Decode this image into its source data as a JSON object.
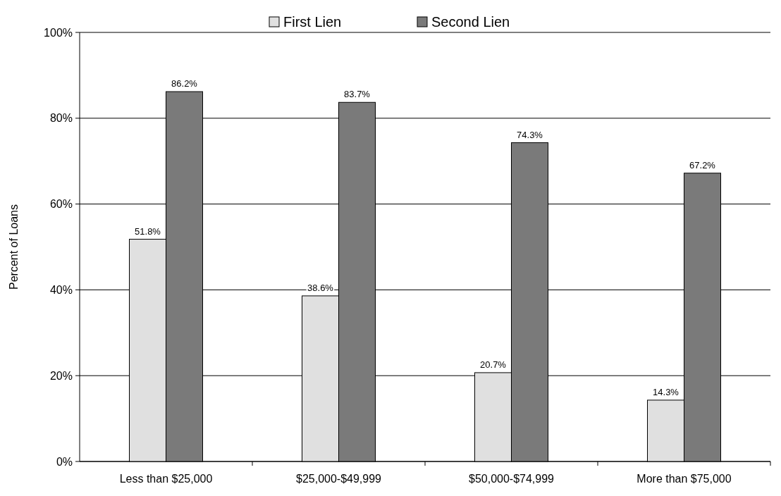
{
  "chart_data": {
    "type": "bar",
    "ylabel": "Percent of Loans",
    "categories": [
      "Less than $25,000",
      "$25,000-$49,999",
      "$50,000-$74,999",
      "More than $75,000"
    ],
    "series": [
      {
        "name": "First Lien",
        "color": "#e0e0e0",
        "values": [
          51.8,
          38.6,
          20.7,
          14.3
        ],
        "value_labels": [
          "51.8%",
          "38.6%",
          "20.7%",
          "14.3%"
        ]
      },
      {
        "name": "Second Lien",
        "color": "#7a7a7a",
        "values": [
          86.2,
          83.7,
          74.3,
          67.2
        ],
        "value_labels": [
          "86.2%",
          "83.7%",
          "74.3%",
          "67.2%"
        ]
      }
    ],
    "ylim": [
      0,
      100
    ],
    "yticks": [
      {
        "value": 0,
        "label": "0%"
      },
      {
        "value": 20,
        "label": "20%"
      },
      {
        "value": 40,
        "label": "40%"
      },
      {
        "value": 60,
        "label": "60%"
      },
      {
        "value": 80,
        "label": "80%"
      },
      {
        "value": 100,
        "label": "100%"
      }
    ],
    "grid": "y",
    "legend": "top"
  }
}
